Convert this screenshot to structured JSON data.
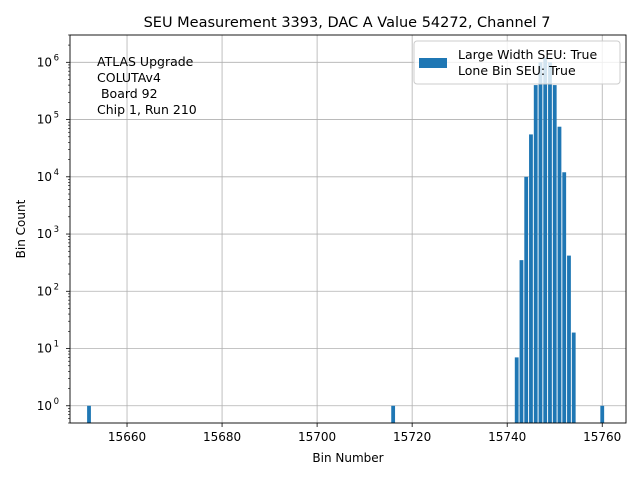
{
  "chart_data": {
    "type": "bar",
    "title": "SEU Measurement 3393, DAC A Value 54272, Channel 7",
    "xlabel": "Bin Number",
    "ylabel": "Bin Count",
    "xlim": [
      15648,
      15765
    ],
    "ylim": [
      0.5,
      3000000
    ],
    "yscale": "log",
    "grid": true,
    "x_ticks": [
      {
        "value": 15660,
        "label": "15660"
      },
      {
        "value": 15680,
        "label": "15680"
      },
      {
        "value": 15700,
        "label": "15700"
      },
      {
        "value": 15720,
        "label": "15720"
      },
      {
        "value": 15740,
        "label": "15740"
      },
      {
        "value": 15760,
        "label": "15760"
      }
    ],
    "y_ticks": [
      {
        "exp": 0,
        "base": "10",
        "sup": "0"
      },
      {
        "exp": 1,
        "base": "10",
        "sup": "1"
      },
      {
        "exp": 2,
        "base": "10",
        "sup": "2"
      },
      {
        "exp": 3,
        "base": "10",
        "sup": "3"
      },
      {
        "exp": 4,
        "base": "10",
        "sup": "4"
      },
      {
        "exp": 5,
        "base": "10",
        "sup": "5"
      },
      {
        "exp": 6,
        "base": "10",
        "sup": "6"
      }
    ],
    "bar_color": "#1f77b4",
    "bars": [
      {
        "x": 15652,
        "y": 1
      },
      {
        "x": 15716,
        "y": 1
      },
      {
        "x": 15742,
        "y": 7
      },
      {
        "x": 15743,
        "y": 350
      },
      {
        "x": 15744,
        "y": 10000
      },
      {
        "x": 15745,
        "y": 55000
      },
      {
        "x": 15746,
        "y": 400000
      },
      {
        "x": 15747,
        "y": 1000000
      },
      {
        "x": 15748,
        "y": 1200000
      },
      {
        "x": 15749,
        "y": 1000000
      },
      {
        "x": 15750,
        "y": 400000
      },
      {
        "x": 15751,
        "y": 75000
      },
      {
        "x": 15752,
        "y": 12000
      },
      {
        "x": 15753,
        "y": 420
      },
      {
        "x": 15754,
        "y": 19
      },
      {
        "x": 15760,
        "y": 1
      }
    ],
    "legend": {
      "placement": "top-right",
      "lines": [
        "Large Width SEU: True",
        "Lone Bin SEU: True"
      ]
    },
    "annotation": [
      "ATLAS Upgrade",
      "COLUTAv4",
      " Board 92",
      "Chip 1, Run 210"
    ]
  }
}
